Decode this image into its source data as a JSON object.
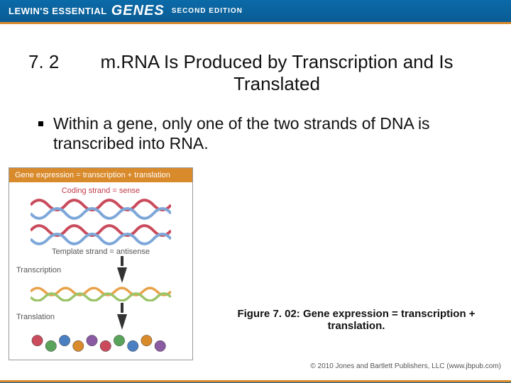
{
  "header": {
    "brand_left": "LEWIN'S ESSENTIAL",
    "brand_genes": "GENES",
    "edition": "SECOND EDITION",
    "bar_color": "#0b6aa8",
    "accent_color": "#d98a2b"
  },
  "title": {
    "number": "7. 2",
    "text": "m.RNA Is Produced by Transcription and Is Translated",
    "fontsize": 26
  },
  "bullet": {
    "text": "Within a gene, only one of the two strands of DNA is transcribed into RNA.",
    "fontsize": 23
  },
  "diagram": {
    "box_border": "#999999",
    "header_bg": "#d98a2b",
    "header_text": "Gene expression = transcription + translation",
    "labels": {
      "coding": "Coding strand = sense",
      "template": "Template strand = antisense",
      "transcription": "Transcription",
      "translation": "Translation"
    },
    "colors": {
      "label_red": "#c03a4a",
      "label_gray": "#555555",
      "arrow": "#333333",
      "dna_strand_a": "#c94b5c",
      "dna_strand_b": "#7da7d9",
      "rna_a": "#e8a24a",
      "rna_b": "#9cc46a",
      "beads": [
        "#c94b5c",
        "#5aa35a",
        "#4a7fc2",
        "#d98a2b",
        "#8a5aa3",
        "#c94b5c",
        "#5aa35a",
        "#4a7fc2",
        "#d98a2b",
        "#8a5aa3"
      ]
    }
  },
  "caption": "Figure 7. 02: Gene expression = transcription + translation.",
  "copyright": "© 2010 Jones and Bartlett Publishers, LLC (www.jbpub.com)"
}
